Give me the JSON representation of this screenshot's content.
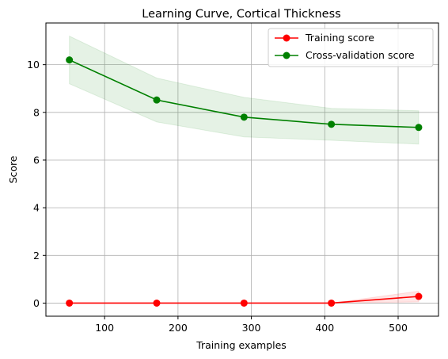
{
  "chart_data": {
    "type": "line",
    "title": "Learning Curve, Cortical Thickness",
    "xlabel": "Training examples",
    "ylabel": "Score",
    "xlim": [
      20,
      555
    ],
    "ylim": [
      -0.55,
      11.75
    ],
    "xticks": [
      100,
      200,
      300,
      400,
      500
    ],
    "yticks": [
      0,
      2,
      4,
      6,
      8,
      10
    ],
    "grid": true,
    "legend_position": "top-right",
    "x": [
      52,
      171,
      290,
      409,
      528
    ],
    "series": [
      {
        "name": "Training score",
        "color": "#ff0000",
        "band_color": "#ff0000",
        "values": [
          0.0,
          0.0,
          0.0,
          0.0,
          0.28
        ],
        "lower": [
          0.0,
          0.0,
          0.0,
          0.0,
          0.05
        ],
        "upper": [
          0.0,
          0.0,
          0.0,
          0.0,
          0.5
        ]
      },
      {
        "name": "Cross-validation score",
        "color": "#008000",
        "band_color": "#008000",
        "values": [
          10.2,
          8.52,
          7.8,
          7.5,
          7.37
        ],
        "lower": [
          9.2,
          7.6,
          6.97,
          6.83,
          6.67
        ],
        "upper": [
          11.2,
          9.44,
          8.63,
          8.17,
          8.07
        ]
      }
    ]
  }
}
